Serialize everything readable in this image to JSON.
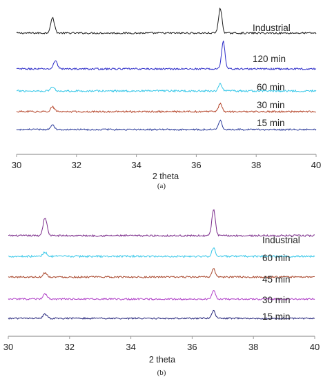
{
  "chart_data": [
    {
      "type": "line",
      "caption": "(a)",
      "xlabel": "2 theta",
      "ylabel": "",
      "xlim": [
        30,
        40
      ],
      "xticks": [
        "30",
        "32",
        "34",
        "36",
        "38",
        "40"
      ],
      "grid": false,
      "peaks_note_positions_2theta": [
        31.2,
        36.8
      ],
      "series": [
        {
          "name": "Industrial",
          "color": "#1a1a1a",
          "peak1_2theta": 31.2,
          "peak1_height": 22,
          "peak2_2theta": 36.8,
          "peak2_height": 36,
          "noise": 1.2
        },
        {
          "name": "120 min",
          "color": "#2b2bc8",
          "peak1_2theta": 31.3,
          "peak1_height": 12,
          "peak2_2theta": 36.9,
          "peak2_height": 40,
          "noise": 1.2
        },
        {
          "name": "60 min",
          "color": "#33c6e8",
          "peak1_2theta": 31.2,
          "peak1_height": 6,
          "peak2_2theta": 36.8,
          "peak2_height": 11,
          "noise": 1.3
        },
        {
          "name": "30 min",
          "color": "#b5452a",
          "peak1_2theta": 31.2,
          "peak1_height": 7,
          "peak2_2theta": 36.8,
          "peak2_height": 12,
          "noise": 1.2
        },
        {
          "name": "15 min",
          "color": "#2a3a9a",
          "peak1_2theta": 31.2,
          "peak1_height": 7,
          "peak2_2theta": 36.8,
          "peak2_height": 13,
          "noise": 1.1
        }
      ]
    },
    {
      "type": "line",
      "caption": "(b)",
      "xlabel": "2 theta",
      "ylabel": "",
      "xlim": [
        30,
        40
      ],
      "xticks": [
        "30",
        "32",
        "34",
        "36",
        "38",
        "40"
      ],
      "grid": false,
      "series": [
        {
          "name": "Industrial",
          "color": "#7a2a8a",
          "peak1_2theta": 31.2,
          "peak1_height": 26,
          "peak2_2theta": 36.7,
          "peak2_height": 38,
          "noise": 1.2
        },
        {
          "name": "60 min",
          "color": "#33c6e8",
          "peak1_2theta": 31.2,
          "peak1_height": 6,
          "peak2_2theta": 36.7,
          "peak2_height": 12,
          "noise": 1.3
        },
        {
          "name": "45 min",
          "color": "#a8452a",
          "peak1_2theta": 31.2,
          "peak1_height": 6,
          "peak2_2theta": 36.7,
          "peak2_height": 12,
          "noise": 1.2
        },
        {
          "name": "30 min",
          "color": "#b040c8",
          "peak1_2theta": 31.2,
          "peak1_height": 7,
          "peak2_2theta": 36.7,
          "peak2_height": 12,
          "noise": 1.2
        },
        {
          "name": "15 min",
          "color": "#23237a",
          "peak1_2theta": 31.2,
          "peak1_height": 6,
          "peak2_2theta": 36.7,
          "peak2_height": 11,
          "noise": 1.1
        }
      ]
    }
  ]
}
